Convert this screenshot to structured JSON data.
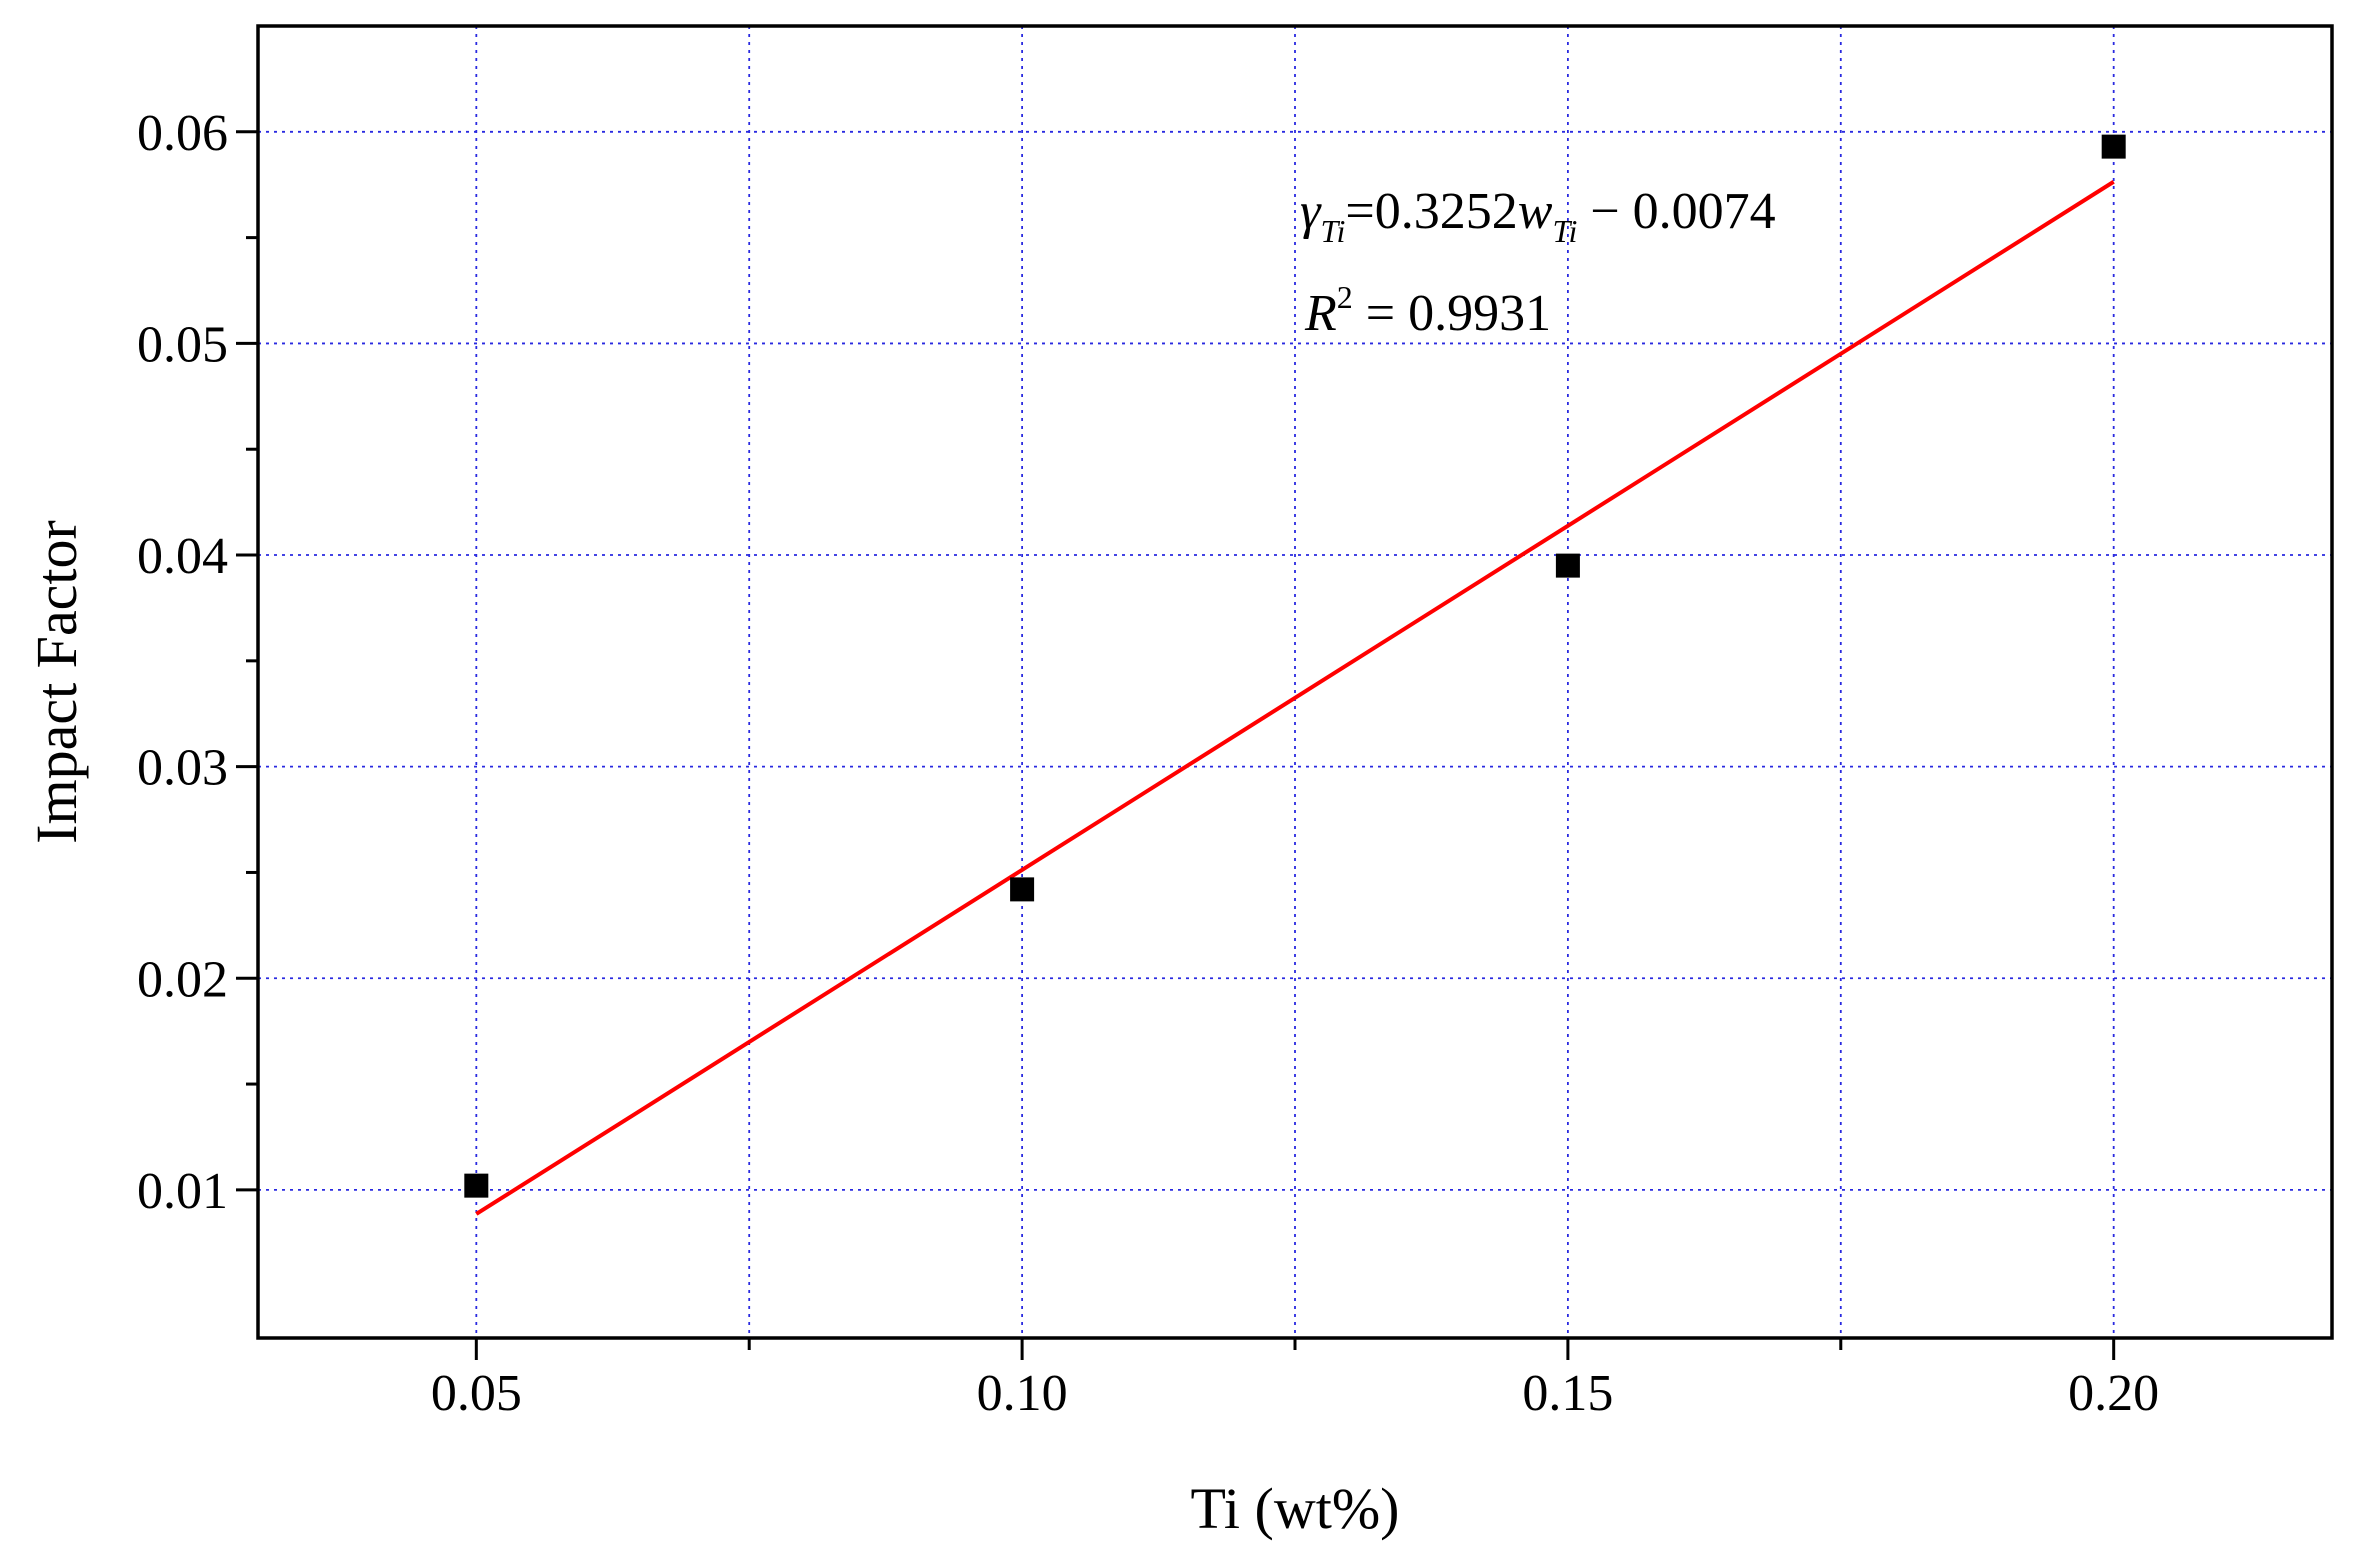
{
  "chart_data": {
    "type": "scatter",
    "xlabel": "Ti (wt%)",
    "ylabel": "Impact Factor",
    "xlim": [
      0.03,
      0.22
    ],
    "ylim": [
      0.003,
      0.065
    ],
    "x_ticks": [
      0.05,
      0.1,
      0.15,
      0.2
    ],
    "x_tick_labels": [
      "0.05",
      "0.10",
      "0.15",
      "0.20"
    ],
    "x_minor_ticks": [
      0.075,
      0.125,
      0.175
    ],
    "y_ticks": [
      0.01,
      0.02,
      0.03,
      0.04,
      0.05,
      0.06
    ],
    "y_tick_labels": [
      "0.01",
      "0.02",
      "0.03",
      "0.04",
      "0.05",
      "0.06"
    ],
    "grid": true,
    "series": [
      {
        "marker": "square",
        "color": "#000000",
        "x": [
          0.05,
          0.1,
          0.15,
          0.2
        ],
        "y": [
          0.0102,
          0.0242,
          0.0395,
          0.0593
        ]
      }
    ],
    "fit": {
      "color": "#ff0000",
      "slope": 0.3252,
      "intercept": -0.0074,
      "x_range": [
        0.05,
        0.2
      ]
    },
    "annotations": {
      "equation": {
        "gamma": "γ",
        "gamma_sub": "Ti",
        "middle": "=0.3252",
        "w": "w",
        "w_sub": "Ti",
        "tail": " − 0.0074"
      },
      "r2": {
        "r": "R",
        "sup": "2",
        "tail": " = 0.9931"
      }
    }
  }
}
